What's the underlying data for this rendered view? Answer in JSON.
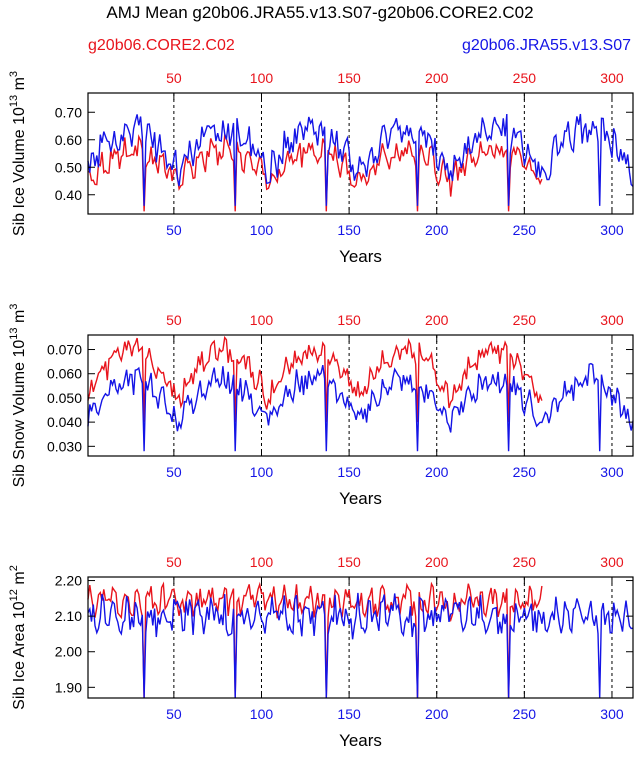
{
  "title": "AMJ Mean g20b06.JRA55.v13.S07-g20b06.CORE2.C02",
  "legend": {
    "red_label": "g20b06.CORE2.C02",
    "blue_label": "g20b06.JRA55.v13.S07"
  },
  "colors": {
    "red": "#e8141c",
    "blue": "#1414e6",
    "axis": "#000000",
    "grid": "#000000"
  },
  "chart_data": [
    {
      "type": "line",
      "ylabel_main": "Sib Ice Volume 10",
      "ylabel_exp": "13",
      "ylabel_unit": " m",
      "ylabel_unit_exp": "3",
      "xlabel": "Years",
      "xlim": [
        1,
        312
      ],
      "ylim": [
        0.33,
        0.77
      ],
      "yticks": [
        0.4,
        0.5,
        0.6,
        0.7
      ],
      "ytick_labels": [
        "0.40",
        "0.50",
        "0.60",
        "0.70"
      ],
      "xticks": [
        50,
        100,
        150,
        200,
        250,
        300
      ],
      "xtick_labels": [
        "50",
        "100",
        "150",
        "200",
        "250",
        "300"
      ],
      "top_ticks": [
        50,
        100,
        150,
        200,
        250,
        300
      ],
      "top_tick_labels": [
        "50",
        "100",
        "150",
        "200",
        "250",
        "300"
      ],
      "dashed_x": [
        50,
        100,
        150,
        200,
        250,
        300
      ],
      "cycle": 52,
      "series": [
        {
          "name": "g20b06.CORE2.C02",
          "color_key": "red",
          "x_end": 260,
          "base": 0.45,
          "trend": 0.11,
          "noise": 0.04,
          "period_trend": 30,
          "dip": 0.34,
          "cap": 0.66
        },
        {
          "name": "g20b06.JRA55.v13.S07",
          "color_key": "blue",
          "x_end": 312,
          "base": 0.48,
          "trend": 0.16,
          "noise": 0.05,
          "period_trend": 30,
          "dip": 0.36,
          "cap": 0.76
        }
      ]
    },
    {
      "type": "line",
      "ylabel_main": "Sib Snow Volume 10",
      "ylabel_exp": "13",
      "ylabel_unit": " m",
      "ylabel_unit_exp": "3",
      "xlabel": "Years",
      "xlim": [
        1,
        312
      ],
      "ylim": [
        0.026,
        0.076
      ],
      "yticks": [
        0.03,
        0.04,
        0.05,
        0.06,
        0.07
      ],
      "ytick_labels": [
        "0.030",
        "0.040",
        "0.050",
        "0.060",
        "0.070"
      ],
      "xticks": [
        50,
        100,
        150,
        200,
        250,
        300
      ],
      "xtick_labels": [
        "50",
        "100",
        "150",
        "200",
        "250",
        "300"
      ],
      "top_ticks": [
        50,
        100,
        150,
        200,
        250,
        300
      ],
      "top_tick_labels": [
        "50",
        "100",
        "150",
        "200",
        "250",
        "300"
      ],
      "dashed_x": [
        50,
        100,
        150,
        200,
        250,
        300
      ],
      "cycle": 52,
      "series": [
        {
          "name": "g20b06.CORE2.C02",
          "color_key": "red",
          "x_end": 260,
          "base": 0.05,
          "trend": 0.02,
          "noise": 0.004,
          "period_trend": 26,
          "dip": 0.04,
          "cap": 0.075
        },
        {
          "name": "g20b06.JRA55.v13.S07",
          "color_key": "blue",
          "x_end": 312,
          "base": 0.04,
          "trend": 0.018,
          "noise": 0.005,
          "period_trend": 30,
          "dip": 0.028,
          "cap": 0.068
        }
      ]
    },
    {
      "type": "line",
      "ylabel_main": "Sib Ice Area 10",
      "ylabel_exp": "12",
      "ylabel_unit": " m",
      "ylabel_unit_exp": "2",
      "xlabel": "Years",
      "xlim": [
        1,
        312
      ],
      "ylim": [
        1.87,
        2.21
      ],
      "yticks": [
        1.9,
        2.0,
        2.1,
        2.2
      ],
      "ytick_labels": [
        "1.90",
        "2.00",
        "2.10",
        "2.20"
      ],
      "xticks": [
        50,
        100,
        150,
        200,
        250,
        300
      ],
      "xtick_labels": [
        "50",
        "100",
        "150",
        "200",
        "250",
        "300"
      ],
      "top_ticks": [
        50,
        100,
        150,
        200,
        250,
        300
      ],
      "top_tick_labels": [
        "50",
        "100",
        "150",
        "200",
        "250",
        "300"
      ],
      "dashed_x": [
        50,
        100,
        150,
        200,
        250,
        300
      ],
      "cycle": 52,
      "series": [
        {
          "name": "g20b06.CORE2.C02",
          "color_key": "red",
          "x_end": 260,
          "base": 2.14,
          "trend": 0.0,
          "noise": 0.035,
          "period_trend": 30,
          "dip": 1.87,
          "cap": 2.2
        },
        {
          "name": "g20b06.JRA55.v13.S07",
          "color_key": "blue",
          "x_end": 312,
          "base": 2.1,
          "trend": 0.0,
          "noise": 0.045,
          "period_trend": 30,
          "dip": 1.87,
          "cap": 2.19
        }
      ]
    }
  ]
}
